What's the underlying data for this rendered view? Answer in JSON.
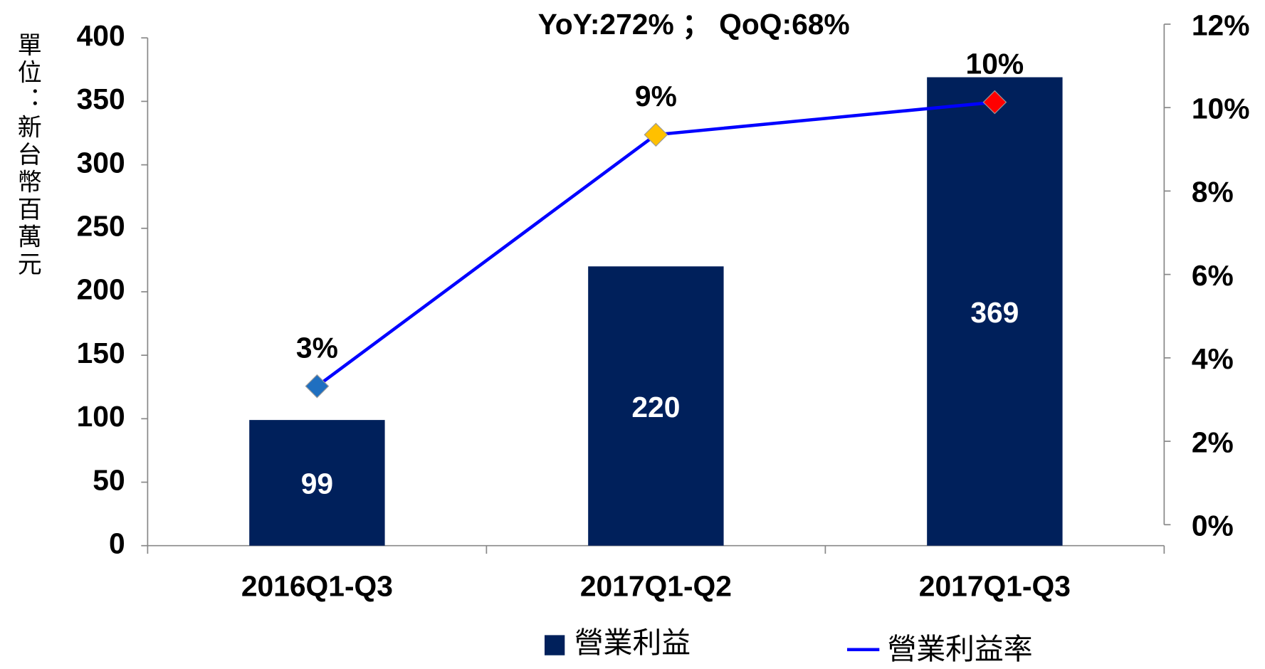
{
  "chart_data": {
    "type": "bar",
    "annotation": "YoY:272% ； QoQ:68%",
    "y_label": "單位：新台幣百萬元",
    "categories": [
      "2016Q1-Q3",
      "2017Q1-Q2",
      "2017Q1-Q3"
    ],
    "series": [
      {
        "name": "營業利益",
        "type": "bar",
        "color": "#00205b",
        "values": [
          99,
          220,
          369
        ]
      },
      {
        "name": "營業利益率",
        "type": "line",
        "axis": "y2",
        "color": "#0000ff",
        "marker_colors": [
          "#1f6fc0",
          "#ffc000",
          "#ff0000"
        ],
        "values": [
          3.32,
          9.35,
          10.13
        ],
        "value_labels": [
          "3%",
          "9%",
          "10%"
        ]
      }
    ],
    "ylim": [
      0,
      400
    ],
    "yticks": [
      0,
      50,
      100,
      150,
      200,
      250,
      300,
      350,
      400
    ],
    "y2lim": [
      0,
      12
    ],
    "y2ticks": [
      {
        "value": 0,
        "label": "0%"
      },
      {
        "value": 2,
        "label": "2%"
      },
      {
        "value": 4,
        "label": "4%"
      },
      {
        "value": 6,
        "label": "6%"
      },
      {
        "value": 8,
        "label": "8%"
      },
      {
        "value": 10,
        "label": "10%"
      },
      {
        "value": 12,
        "label": "12%"
      }
    ],
    "legend": "bottom"
  }
}
